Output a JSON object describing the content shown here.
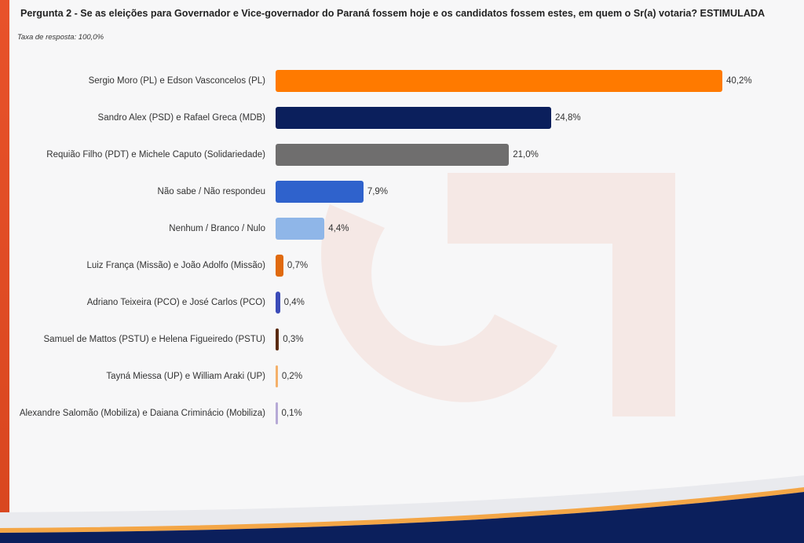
{
  "header": {
    "title": "Pergunta 2 - Se as eleições para Governador e Vice-governador do Paraná fossem hoje e os candidatos fossem estes, em quem o Sr(a) votaria? ESTIMULADA",
    "subtitle": "Taxa de resposta: 100,0%"
  },
  "colors": {
    "accent_orange": "#ff7a00",
    "brand_navy": "#0b1f5c"
  },
  "chart_data": {
    "type": "bar",
    "orientation": "horizontal",
    "title": "Pergunta 2 - Se as eleições para Governador e Vice-governador do Paraná fossem hoje e os candidatos fossem estes, em quem o Sr(a) votaria? ESTIMULADA",
    "subtitle": "Taxa de resposta: 100,0%",
    "xlabel": "",
    "ylabel": "",
    "xlim": [
      0,
      40.2
    ],
    "grid": false,
    "legend": "none",
    "categories": [
      "Sergio Moro (PL) e Edson Vasconcelos (PL)",
      "Sandro Alex (PSD) e Rafael Greca (MDB)",
      "Requião Filho (PDT) e Michele Caputo (Solidariedade)",
      "Não sabe / Não respondeu",
      "Nenhum / Branco / Nulo",
      "Luiz França (Missão) e João Adolfo (Missão)",
      "Adriano Teixeira (PCO) e José Carlos (PCO)",
      "Samuel de Mattos (PSTU) e Helena Figueiredo (PSTU)",
      "Tayná Miessa (UP) e William Araki (UP)",
      "Alexandre Salomão (Mobiliza) e Daiana Criminácio (Mobiliza)"
    ],
    "values": [
      40.2,
      24.8,
      21.0,
      7.9,
      4.4,
      0.7,
      0.4,
      0.3,
      0.2,
      0.1
    ],
    "data_labels": [
      "40,2%",
      "24,8%",
      "21,0%",
      "7,9%",
      "4,4%",
      "0,7%",
      "0,4%",
      "0,3%",
      "0,2%",
      "0,1%"
    ],
    "colors": [
      "#ff7a00",
      "#0b1f5c",
      "#6f6e6e",
      "#2f62cc",
      "#8fb6e8",
      "#e06a0e",
      "#3b4bb8",
      "#5a2a10",
      "#f4b06a",
      "#b6a9d6"
    ]
  }
}
